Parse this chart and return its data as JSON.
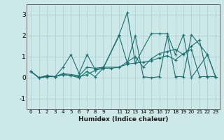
{
  "xlabel": "Humidex (Indice chaleur)",
  "ylabel": "",
  "background_color": "#cce8e8",
  "grid_color": "#b0d0d0",
  "line_color": "#1a7070",
  "xlim": [
    -0.5,
    23.5
  ],
  "ylim": [
    -1.5,
    3.5
  ],
  "yticks": [
    -1,
    0,
    1,
    2,
    3
  ],
  "xtick_labels": [
    "0",
    "1",
    "2",
    "3",
    "4",
    "5",
    "6",
    "7",
    "8",
    "9",
    "",
    "11",
    "12",
    "13",
    "14",
    "15",
    "16",
    "17",
    "18",
    "19",
    "20",
    "21",
    "22",
    "23"
  ],
  "xtick_positions": [
    0,
    1,
    2,
    3,
    4,
    5,
    6,
    7,
    8,
    9,
    10,
    11,
    12,
    13,
    14,
    15,
    16,
    17,
    18,
    19,
    20,
    21,
    22,
    23
  ],
  "lines": [
    {
      "x": [
        0,
        1,
        2,
        3,
        4,
        5,
        6,
        7,
        8,
        9,
        11,
        12,
        13,
        15,
        16,
        17,
        18,
        19,
        20,
        22,
        23
      ],
      "y": [
        0.3,
        0.0,
        0.05,
        0.05,
        0.5,
        1.1,
        0.2,
        1.1,
        0.4,
        0.45,
        2.05,
        3.1,
        0.7,
        2.1,
        2.1,
        2.1,
        1.1,
        2.05,
        0.0,
        1.1,
        0.05
      ]
    },
    {
      "x": [
        0,
        1,
        2,
        3,
        4,
        5,
        6,
        7,
        8,
        9,
        11,
        12,
        13,
        14,
        15,
        16,
        17,
        18,
        19,
        20,
        21,
        22,
        23
      ],
      "y": [
        0.3,
        0.0,
        0.1,
        0.05,
        0.2,
        0.15,
        0.1,
        0.5,
        0.45,
        0.5,
        0.5,
        0.75,
        1.0,
        0.5,
        0.9,
        1.15,
        1.25,
        1.35,
        1.1,
        1.5,
        1.8,
        0.05,
        0.05
      ]
    },
    {
      "x": [
        0,
        1,
        2,
        3,
        4,
        5,
        6,
        7,
        8,
        9,
        11,
        12,
        13,
        14,
        15,
        16,
        17,
        18,
        19,
        20,
        22,
        23
      ],
      "y": [
        0.3,
        0.0,
        0.05,
        0.05,
        0.15,
        0.1,
        0.0,
        0.3,
        0.05,
        0.45,
        2.0,
        0.7,
        2.0,
        0.05,
        0.0,
        0.05,
        2.0,
        0.05,
        0.05,
        2.05,
        1.1,
        0.05
      ]
    },
    {
      "x": [
        0,
        1,
        2,
        3,
        4,
        5,
        6,
        7,
        8,
        9,
        10,
        11,
        12,
        13,
        14,
        15,
        16,
        17,
        18,
        19,
        20,
        21,
        22,
        23
      ],
      "y": [
        0.3,
        0.0,
        0.1,
        0.05,
        0.15,
        0.1,
        0.05,
        0.15,
        0.35,
        0.45,
        0.45,
        0.5,
        0.65,
        0.7,
        0.75,
        0.8,
        0.95,
        1.05,
        0.85,
        1.15,
        1.35,
        0.05,
        0.05,
        0.05
      ]
    }
  ]
}
